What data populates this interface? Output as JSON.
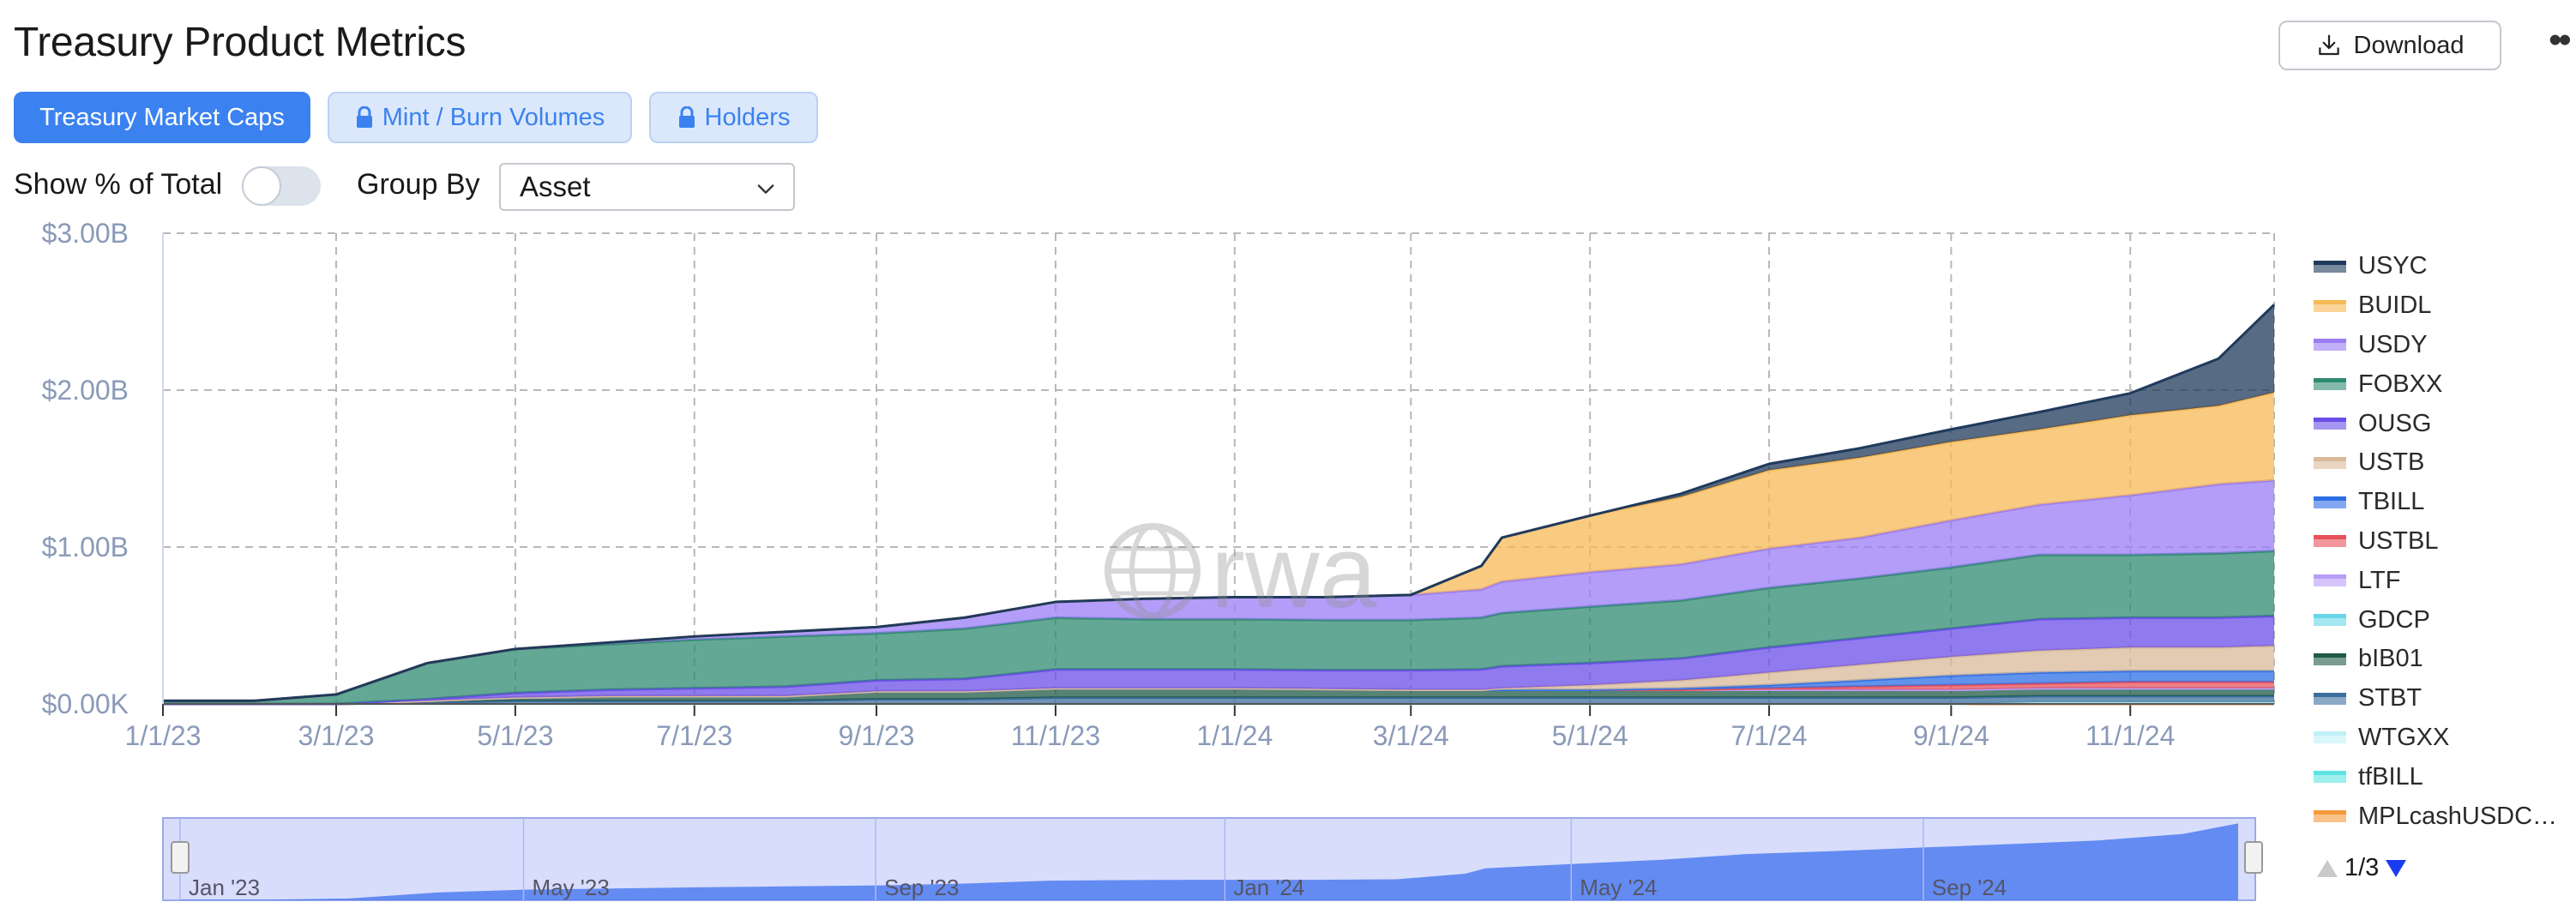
{
  "header": {
    "title": "Treasury Product Metrics",
    "download_label": "Download",
    "more_label": "••"
  },
  "tabs": [
    {
      "label": "Treasury Market Caps",
      "active": true,
      "locked": false
    },
    {
      "label": "Mint / Burn Volumes",
      "active": false,
      "locked": true
    },
    {
      "label": "Holders",
      "active": false,
      "locked": true
    }
  ],
  "controls": {
    "show_pct_label": "Show % of Total",
    "show_pct_on": false,
    "group_by_label": "Group By",
    "group_by_value": "Asset"
  },
  "watermark": "rwa",
  "chart_data": {
    "type": "area",
    "stacked": true,
    "title": "",
    "xlabel": "",
    "ylabel": "",
    "ylim": [
      0,
      3000000000
    ],
    "y_ticks": [
      "$0.00K",
      "$1.00B",
      "$2.00B",
      "$3.00B"
    ],
    "x_ticks": [
      "1/1/23",
      "3/1/23",
      "5/1/23",
      "7/1/23",
      "9/1/23",
      "11/1/23",
      "1/1/24",
      "3/1/24",
      "5/1/24",
      "7/1/24",
      "9/1/24",
      "11/1/24"
    ],
    "grid": true,
    "legend_position": "right",
    "x": [
      "2023-01-01",
      "2023-02-01",
      "2023-03-01",
      "2023-04-01",
      "2023-05-01",
      "2023-06-01",
      "2023-07-01",
      "2023-08-01",
      "2023-09-01",
      "2023-10-01",
      "2023-11-01",
      "2023-12-01",
      "2024-01-01",
      "2024-02-01",
      "2024-03-01",
      "2024-03-25",
      "2024-04-01",
      "2024-05-01",
      "2024-06-01",
      "2024-07-01",
      "2024-08-01",
      "2024-09-01",
      "2024-10-01",
      "2024-11-01",
      "2024-12-01",
      "2024-12-20"
    ],
    "series": [
      {
        "name": "MPLcashUSDC",
        "color": "#f59a3c",
        "values": [
          0,
          0,
          0,
          0,
          0,
          0,
          0,
          0,
          0,
          0,
          0,
          0,
          0,
          0,
          0,
          0,
          0,
          0,
          0,
          0,
          0,
          0,
          0,
          0,
          0,
          0
        ]
      },
      {
        "name": "tfBILL",
        "color": "#5ee3e3",
        "values": [
          0,
          0,
          0,
          0,
          0,
          0,
          0,
          0,
          0,
          0,
          0,
          0,
          0,
          0,
          0,
          0,
          0,
          0,
          0,
          0,
          0,
          0,
          10000000,
          10000000,
          10000000,
          10000000
        ]
      },
      {
        "name": "WTGXX",
        "color": "#bff1f7",
        "values": [
          0,
          0,
          0,
          0,
          0,
          0,
          0,
          0,
          0,
          0,
          0,
          0,
          0,
          0,
          0,
          0,
          0,
          0,
          0,
          0,
          0,
          0,
          0,
          0,
          0,
          0
        ]
      },
      {
        "name": "STBT",
        "color": "#3d6f9e",
        "values": [
          0,
          0,
          0,
          10000000,
          20000000,
          20000000,
          20000000,
          20000000,
          30000000,
          30000000,
          40000000,
          40000000,
          40000000,
          40000000,
          40000000,
          40000000,
          40000000,
          40000000,
          40000000,
          40000000,
          40000000,
          40000000,
          40000000,
          40000000,
          40000000,
          40000000
        ]
      },
      {
        "name": "bIB01",
        "color": "#1f5a46",
        "values": [
          0,
          0,
          0,
          10000000,
          20000000,
          30000000,
          30000000,
          30000000,
          50000000,
          50000000,
          60000000,
          60000000,
          60000000,
          55000000,
          50000000,
          50000000,
          50000000,
          50000000,
          50000000,
          50000000,
          50000000,
          50000000,
          50000000,
          50000000,
          50000000,
          50000000
        ]
      },
      {
        "name": "GDCP",
        "color": "#68d6e8",
        "values": [
          0,
          0,
          0,
          0,
          0,
          0,
          0,
          0,
          0,
          0,
          0,
          0,
          0,
          0,
          0,
          0,
          0,
          0,
          0,
          0,
          0,
          0,
          0,
          0,
          0,
          0
        ]
      },
      {
        "name": "LTF",
        "color": "#b79cf7",
        "values": [
          0,
          0,
          0,
          0,
          0,
          0,
          0,
          0,
          0,
          0,
          0,
          0,
          0,
          0,
          0,
          0,
          0,
          0,
          0,
          0,
          0,
          0,
          0,
          0,
          0,
          0
        ]
      },
      {
        "name": "USTBL",
        "color": "#e8525c",
        "values": [
          0,
          0,
          0,
          0,
          0,
          0,
          0,
          0,
          0,
          0,
          0,
          0,
          0,
          0,
          0,
          0,
          0,
          0,
          0,
          10000000,
          20000000,
          30000000,
          30000000,
          40000000,
          40000000,
          40000000
        ]
      },
      {
        "name": "TBILL",
        "color": "#2e6fe6",
        "values": [
          0,
          0,
          0,
          0,
          0,
          0,
          0,
          0,
          0,
          0,
          0,
          0,
          0,
          0,
          0,
          0,
          0,
          0,
          10000000,
          20000000,
          40000000,
          60000000,
          70000000,
          70000000,
          70000000,
          70000000
        ]
      },
      {
        "name": "USTB",
        "color": "#d9b99a",
        "values": [
          0,
          0,
          0,
          0,
          0,
          0,
          0,
          0,
          0,
          0,
          0,
          0,
          0,
          0,
          0,
          0,
          10000000,
          30000000,
          50000000,
          80000000,
          100000000,
          120000000,
          140000000,
          150000000,
          150000000,
          160000000
        ]
      },
      {
        "name": "OUSG",
        "color": "#6a4ee8",
        "values": [
          0,
          0,
          0,
          10000000,
          30000000,
          40000000,
          50000000,
          60000000,
          70000000,
          80000000,
          120000000,
          120000000,
          120000000,
          120000000,
          125000000,
          130000000,
          140000000,
          140000000,
          140000000,
          160000000,
          170000000,
          180000000,
          200000000,
          190000000,
          190000000,
          190000000
        ]
      },
      {
        "name": "FOBXX",
        "color": "#2f8a72",
        "values": [
          20000000,
          20000000,
          60000000,
          230000000,
          280000000,
          290000000,
          310000000,
          320000000,
          300000000,
          320000000,
          330000000,
          320000000,
          320000000,
          320000000,
          320000000,
          330000000,
          340000000,
          360000000,
          370000000,
          380000000,
          380000000,
          390000000,
          410000000,
          400000000,
          410000000,
          415000000
        ]
      },
      {
        "name": "USDY",
        "color": "#9a7cf5",
        "values": [
          0,
          0,
          0,
          0,
          0,
          10000000,
          20000000,
          30000000,
          40000000,
          70000000,
          100000000,
          130000000,
          140000000,
          145000000,
          160000000,
          180000000,
          200000000,
          220000000,
          230000000,
          250000000,
          260000000,
          300000000,
          320000000,
          380000000,
          440000000,
          450000000
        ]
      },
      {
        "name": "BUIDL",
        "color": "#f7b955",
        "values": [
          0,
          0,
          0,
          0,
          0,
          0,
          0,
          0,
          0,
          0,
          0,
          0,
          0,
          0,
          0,
          150000000,
          280000000,
          360000000,
          430000000,
          500000000,
          510000000,
          500000000,
          480000000,
          510000000,
          500000000,
          560000000
        ]
      },
      {
        "name": "USYC",
        "color": "#1f3a5c",
        "values": [
          0,
          0,
          0,
          0,
          0,
          0,
          0,
          0,
          0,
          0,
          0,
          0,
          0,
          0,
          0,
          0,
          0,
          0,
          20000000,
          40000000,
          60000000,
          80000000,
          110000000,
          140000000,
          300000000,
          560000000
        ]
      }
    ],
    "legend": [
      "USYC",
      "BUIDL",
      "USDY",
      "FOBXX",
      "OUSG",
      "USTB",
      "TBILL",
      "USTBL",
      "LTF",
      "GDCP",
      "bIB01",
      "STBT",
      "WTGXX",
      "tfBILL",
      "MPLcashUSDC…"
    ],
    "navigator": {
      "labels": [
        "Jan '23",
        "May '23",
        "Sep '23",
        "Jan '24",
        "May '24",
        "Sep '24"
      ]
    }
  },
  "legend_pager": "1/3"
}
